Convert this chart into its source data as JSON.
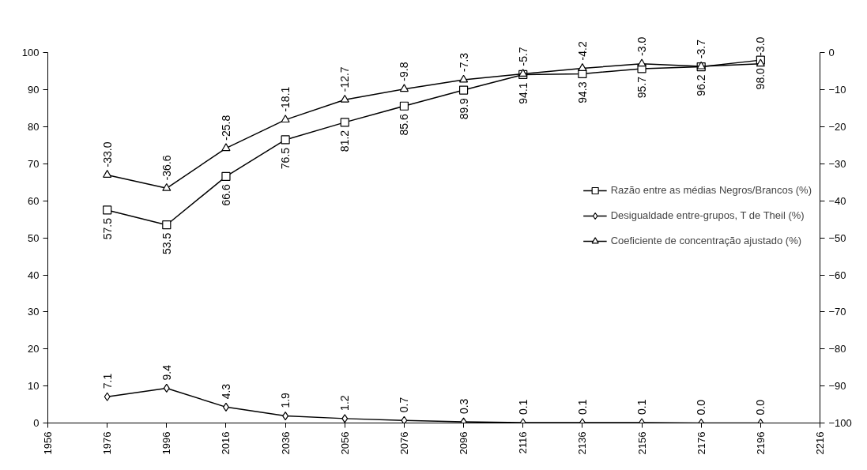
{
  "chart_data": {
    "type": "line",
    "x": [
      1976,
      1996,
      2016,
      2036,
      2056,
      2076,
      2096,
      2116,
      2136,
      2156,
      2176,
      2196
    ],
    "xlim": [
      1956,
      2216
    ],
    "xticks": [
      1956,
      1976,
      1996,
      2016,
      2036,
      2056,
      2076,
      2096,
      2116,
      2136,
      2156,
      2176,
      2196,
      2216
    ],
    "ylim": [
      0,
      100
    ],
    "yticks": [
      0,
      10,
      20,
      30,
      40,
      50,
      60,
      70,
      80,
      90,
      100
    ],
    "y2lim": [
      -100,
      0
    ],
    "y2ticks": [
      -100,
      -90,
      -80,
      -70,
      -60,
      -50,
      -40,
      -30,
      -20,
      -10,
      0
    ],
    "grid": false,
    "legend": "right",
    "line_style": "solid",
    "series": [
      {
        "name": "Razão entre as médias Negros/Brancos (%)",
        "color": "#000000",
        "marker": "square",
        "values": [
          57.5,
          53.5,
          66.6,
          76.5,
          81.2,
          85.6,
          89.9,
          94.1,
          94.3,
          95.7,
          96.2,
          98.0
        ],
        "value_labels": [
          "57.5",
          "53.5",
          "66.6",
          "76.5",
          "81.2",
          "85.6",
          "89.9",
          "94.1",
          "94.3",
          "95.7",
          "96.2",
          "98.0"
        ]
      },
      {
        "name": "Desigualdade entre-grupos, T de Theil (%)",
        "color": "#000000",
        "marker": "diamond",
        "values": [
          7.1,
          9.4,
          4.3,
          1.9,
          1.2,
          0.7,
          0.3,
          0.1,
          0.1,
          0.1,
          0.0,
          0.0
        ],
        "value_labels": [
          "7.1",
          "9.4",
          "4.3",
          "1.9",
          "1.2",
          "0.7",
          "0.3",
          "0.1",
          "0.1",
          "0.1",
          "0.0",
          "0.0"
        ]
      },
      {
        "name": "Coeficiente de concentração ajustado (%)",
        "color": "#000000",
        "marker": "triangle",
        "axis": "y2",
        "values": [
          -33.0,
          -36.6,
          -25.8,
          -18.1,
          -12.7,
          -9.8,
          -7.3,
          -5.7,
          -4.2,
          -3.0,
          -3.7,
          -3.0
        ],
        "value_labels": [
          "-33.0",
          "-36.6",
          "-25.8",
          "-18.1",
          "-12.7",
          "-9.8",
          "-7.3",
          "-5.7",
          "-4.2",
          "-3.0",
          "-3.7",
          "-3.0"
        ]
      }
    ]
  }
}
